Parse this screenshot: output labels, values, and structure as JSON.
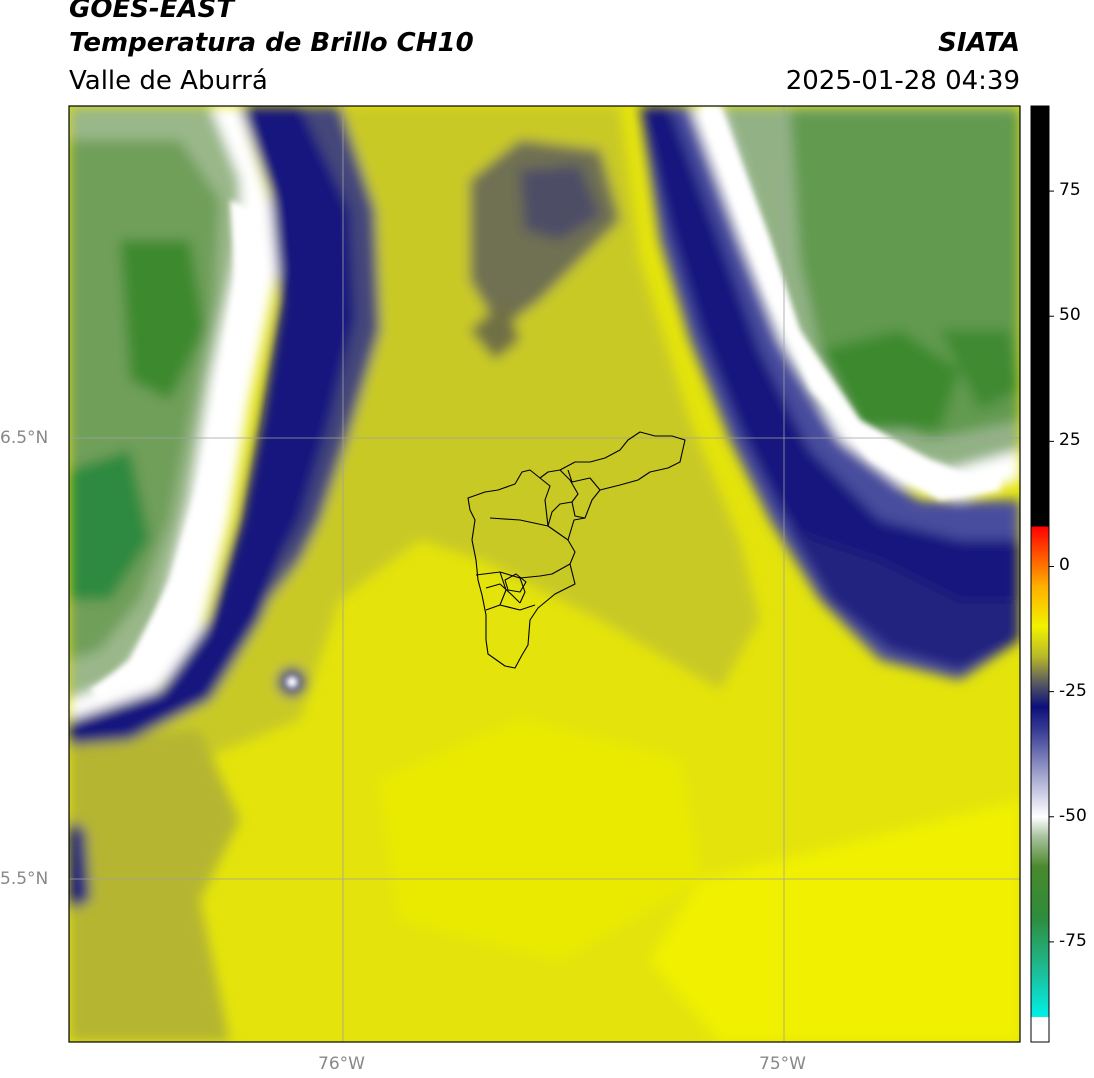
{
  "header": {
    "satellite": "GOES-EAST",
    "product": "Temperatura de Brillo CH10",
    "region": "Valle de Aburrá",
    "agency": "SIATA",
    "timestamp": "2025-01-28 04:39"
  },
  "map": {
    "lat_ticks": [
      "6.5°N",
      "5.5°N"
    ],
    "lon_ticks": [
      "76°W",
      "75°W"
    ]
  },
  "colorbar": {
    "tick_labels": [
      "75",
      "50",
      "25",
      "0",
      "-25",
      "-50",
      "-75"
    ],
    "tick_values": [
      75,
      50,
      25,
      0,
      -25,
      -50,
      -75
    ],
    "range": [
      -95,
      92
    ],
    "stops": [
      {
        "v": -95,
        "c": "#ffffff"
      },
      {
        "v": -90,
        "c": "#ffffff"
      },
      {
        "v": -90,
        "c": "#00f0e8"
      },
      {
        "v": -80,
        "c": "#1fb98f"
      },
      {
        "v": -70,
        "c": "#2e8c3c"
      },
      {
        "v": -60,
        "c": "#4a8a2c"
      },
      {
        "v": -54,
        "c": "#a9c29e"
      },
      {
        "v": -50,
        "c": "#ffffff"
      },
      {
        "v": -42,
        "c": "#a6a8d0"
      },
      {
        "v": -33,
        "c": "#3c3f97"
      },
      {
        "v": -28,
        "c": "#0c0f7a"
      },
      {
        "v": -23,
        "c": "#5e5e5e"
      },
      {
        "v": -18,
        "c": "#b8b82a"
      },
      {
        "v": -12,
        "c": "#f2f200"
      },
      {
        "v": -4,
        "c": "#ffb000"
      },
      {
        "v": 8,
        "c": "#ff0000"
      },
      {
        "v": 8,
        "c": "#000000"
      },
      {
        "v": 92,
        "c": "#000000"
      }
    ]
  },
  "colors": {
    "yellow_bright": "#eeee00",
    "yellow_mid": "#d6d619",
    "olive": "#a8a832",
    "navy": "#0c0f7a",
    "green_light": "#8fb07e",
    "green_dark": "#3e8a2e",
    "gridline": "#a0a0a0"
  }
}
